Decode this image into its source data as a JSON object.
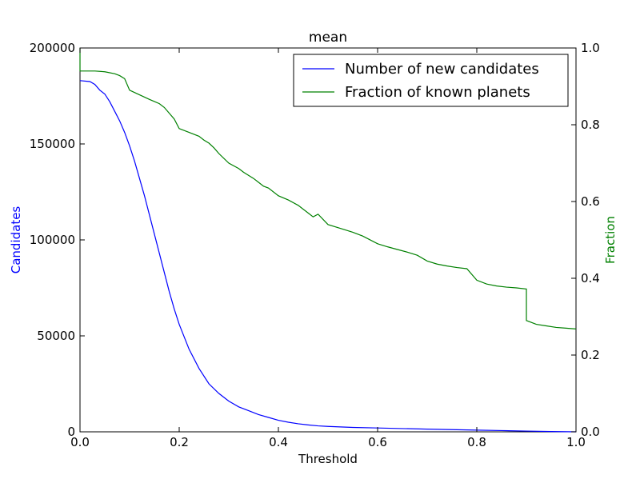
{
  "chart_data": {
    "type": "line",
    "title": "mean",
    "xlabel": "Threshold",
    "ylabel_left": "Candidates",
    "ylabel_right": "Fraction",
    "xlim": [
      0.0,
      1.0
    ],
    "ylim_left": [
      0,
      200000
    ],
    "ylim_right": [
      0.0,
      1.0
    ],
    "x_ticks": [
      "0.0",
      "0.2",
      "0.4",
      "0.6",
      "0.8",
      "1.0"
    ],
    "y_ticks_left": [
      "0",
      "50000",
      "100000",
      "150000",
      "200000"
    ],
    "y_ticks_right": [
      "0.0",
      "0.2",
      "0.4",
      "0.6",
      "0.8",
      "1.0"
    ],
    "grid": false,
    "legend_position": "top-right",
    "colors": {
      "candidates": "#0000ff",
      "fraction": "#008000",
      "axes": "#000000"
    },
    "series": [
      {
        "name": "Number of new candidates",
        "axis": "left",
        "x": [
          0.0,
          0.02,
          0.03,
          0.04,
          0.05,
          0.06,
          0.07,
          0.08,
          0.09,
          0.1,
          0.11,
          0.12,
          0.13,
          0.14,
          0.15,
          0.16,
          0.17,
          0.18,
          0.19,
          0.2,
          0.22,
          0.24,
          0.26,
          0.28,
          0.3,
          0.32,
          0.34,
          0.36,
          0.38,
          0.4,
          0.42,
          0.44,
          0.46,
          0.48,
          0.5,
          0.55,
          0.6,
          0.65,
          0.7,
          0.75,
          0.8,
          0.85,
          0.9,
          0.95,
          1.0
        ],
        "y": [
          183000,
          182500,
          181000,
          178000,
          176000,
          172000,
          167000,
          162000,
          156000,
          149000,
          141000,
          132000,
          123000,
          113000,
          103000,
          93000,
          83000,
          73000,
          64000,
          56000,
          43000,
          33000,
          25000,
          20000,
          16000,
          13000,
          11000,
          9000,
          7500,
          6000,
          5000,
          4200,
          3600,
          3100,
          2800,
          2300,
          2000,
          1700,
          1400,
          1150,
          900,
          650,
          400,
          150,
          0
        ]
      },
      {
        "name": "Fraction of known planets",
        "axis": "right",
        "x": [
          0.0,
          0.0,
          0.005,
          0.03,
          0.05,
          0.07,
          0.08,
          0.09,
          0.1,
          0.1,
          0.12,
          0.14,
          0.16,
          0.17,
          0.18,
          0.19,
          0.2,
          0.2,
          0.22,
          0.24,
          0.25,
          0.26,
          0.27,
          0.28,
          0.3,
          0.3,
          0.32,
          0.33,
          0.34,
          0.35,
          0.36,
          0.37,
          0.38,
          0.4,
          0.4,
          0.42,
          0.44,
          0.45,
          0.46,
          0.47,
          0.48,
          0.5,
          0.5,
          0.53,
          0.55,
          0.57,
          0.6,
          0.6,
          0.62,
          0.64,
          0.66,
          0.68,
          0.7,
          0.7,
          0.72,
          0.74,
          0.76,
          0.78,
          0.8,
          0.8,
          0.82,
          0.84,
          0.86,
          0.88,
          0.9,
          0.9,
          0.92,
          0.94,
          0.96,
          0.98,
          1.0
        ],
        "y": [
          1.0,
          0.94,
          0.94,
          0.94,
          0.938,
          0.933,
          0.928,
          0.92,
          0.89,
          0.89,
          0.878,
          0.866,
          0.855,
          0.845,
          0.83,
          0.815,
          0.79,
          0.79,
          0.78,
          0.77,
          0.76,
          0.752,
          0.74,
          0.725,
          0.7,
          0.7,
          0.686,
          0.676,
          0.668,
          0.66,
          0.65,
          0.64,
          0.635,
          0.615,
          0.615,
          0.604,
          0.59,
          0.58,
          0.57,
          0.56,
          0.567,
          0.54,
          0.54,
          0.528,
          0.52,
          0.51,
          0.49,
          0.49,
          0.482,
          0.475,
          0.468,
          0.46,
          0.445,
          0.445,
          0.437,
          0.432,
          0.428,
          0.425,
          0.395,
          0.395,
          0.385,
          0.38,
          0.377,
          0.375,
          0.372,
          0.29,
          0.28,
          0.276,
          0.272,
          0.27,
          0.268
        ]
      }
    ]
  }
}
